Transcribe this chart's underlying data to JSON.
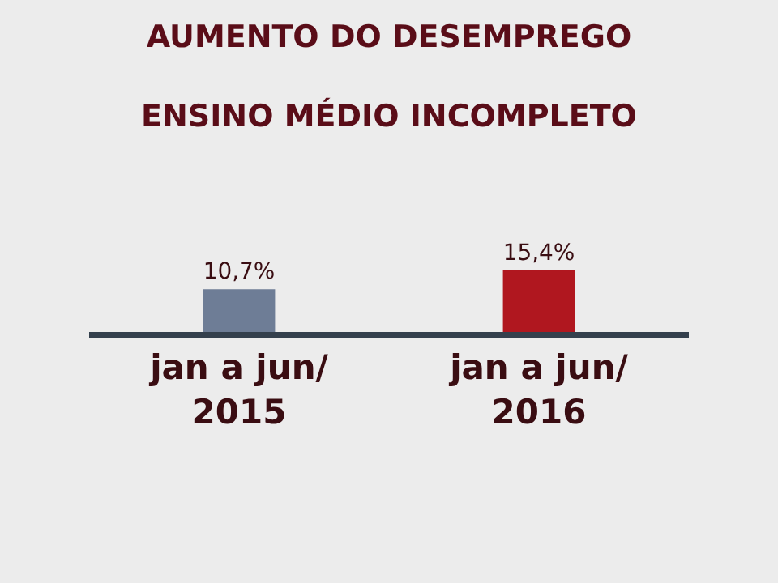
{
  "chart_data": {
    "type": "bar",
    "title": "AUMENTO DO DESEMPREGO",
    "subtitle": "ENSINO MÉDIO INCOMPLETO",
    "categories": [
      "jan a jun/\n2015",
      "jan a jun/\n2016"
    ],
    "values": [
      10.7,
      15.4
    ],
    "colors": [
      "#6e7d96",
      "#b0171f"
    ],
    "value_labels": [
      "10,7%",
      "15,4%"
    ],
    "grid": false,
    "legend": false
  }
}
